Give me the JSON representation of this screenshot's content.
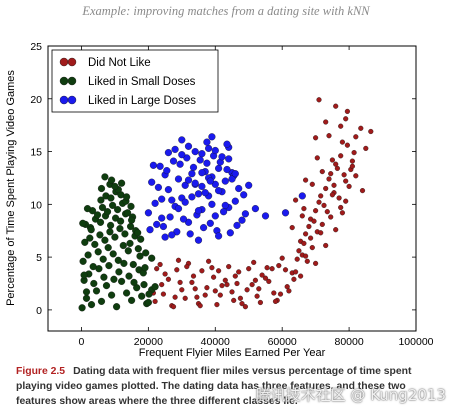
{
  "running_head": "Example: improving matches from a dating site with kNN",
  "caption": {
    "figure_number": "Figure 2.5",
    "text": "Dating data with frequent flier miles versus percentage of time spent playing video games plotted. The dating data has three features, and these two features show areas where the three different classes lie."
  },
  "watermark": "腾讯技术社区 @ Kung2013",
  "colors": {
    "did_not_like": "#a01b1b",
    "small_doses": "#0f3d0f",
    "large_doses": "#1a1aee"
  },
  "chart_data": {
    "type": "scatter",
    "title": "",
    "xlabel": "Frequent Flyier Miles Earned Per Year",
    "ylabel": "Percentage of Time Spent Playing Video Games",
    "xlim": [
      -10000,
      100000
    ],
    "ylim": [
      -2,
      25
    ],
    "xticks": [
      0,
      20000,
      40000,
      60000,
      80000,
      100000
    ],
    "yticks": [
      0,
      5,
      10,
      15,
      20,
      25
    ],
    "grid": false,
    "legend_position": "top-left",
    "series": [
      {
        "name": "Did Not Like",
        "color": "#a01b1b",
        "x": [
          22000,
          24500,
          27000,
          29500,
          31000,
          33500,
          35000,
          37500,
          39000,
          41500,
          43000,
          45500,
          47000,
          49500,
          51000,
          53500,
          55000,
          57500,
          59000,
          61500,
          63000,
          23500,
          26000,
          28500,
          32000,
          34500,
          38000,
          40500,
          44000,
          46500,
          50000,
          52500,
          56000,
          58500,
          62000,
          64500,
          25000,
          30000,
          36000,
          42000,
          48000,
          54000,
          60000,
          66000,
          21500,
          27500,
          33000,
          39500,
          45000,
          51500,
          57000,
          63500,
          24000,
          29000,
          35500,
          41000,
          47500,
          53000,
          59500,
          65500,
          22500,
          28000,
          34000,
          40000,
          46000,
          52000,
          58000,
          64000,
          31500,
          37000,
          43500,
          49000,
          55500,
          61000,
          65000,
          67000,
          68500,
          70000,
          71500,
          73000,
          74500,
          76000,
          77500,
          79000,
          80500,
          66500,
          68000,
          69500,
          71000,
          72500,
          74000,
          75500,
          77000,
          78500,
          80000,
          81500,
          67500,
          69000,
          70500,
          72000,
          73500,
          75000,
          76500,
          78000,
          79500,
          65500,
          67000,
          68500,
          70000,
          71500,
          73000,
          74500,
          76000,
          77500,
          79000,
          82000,
          83500,
          85000,
          86500,
          66000,
          69000,
          72000,
          75000,
          78000,
          81000,
          84000,
          70000,
          73000,
          76000,
          79000,
          82000,
          64000,
          67000,
          70500,
          74000,
          77500,
          81000,
          63000,
          66500,
          71000,
          75500,
          79500
        ],
        "y": [
          0.8,
          1.5,
          0.4,
          2.6,
          1.1,
          3.2,
          0.6,
          2.1,
          4.0,
          1.4,
          2.8,
          0.9,
          3.6,
          1.9,
          2.4,
          0.7,
          3.0,
          1.6,
          4.2,
          2.2,
          3.5,
          4.3,
          2.9,
          3.8,
          4.4,
          1.2,
          4.6,
          0.5,
          4.1,
          2.5,
          3.9,
          1.3,
          2.7,
          0.9,
          1.8,
          4.8,
          3.4,
          1.9,
          3.7,
          2.3,
          0.6,
          3.3,
          4.9,
          5.2,
          1.6,
          0.3,
          2.6,
          3.1,
          1.7,
          4.5,
          3.9,
          2.9,
          2.4,
          4.7,
          0.4,
          3.7,
          1.1,
          2.0,
          1.5,
          6.5,
          3.9,
          1.2,
          2.0,
          1.8,
          3.2,
          2.8,
          0.8,
          3.6,
          4.1,
          1.4,
          2.4,
          0.3,
          4.0,
          3.8,
          5.6,
          7.2,
          8.6,
          9.4,
          10.8,
          11.5,
          12.9,
          13.8,
          14.6,
          12.2,
          13.3,
          6.3,
          7.9,
          8.4,
          10.2,
          9.9,
          12.4,
          11.1,
          10.6,
          12.8,
          11.7,
          14.9,
          4.6,
          5.9,
          7.4,
          8.1,
          9.3,
          10.9,
          13.4,
          9.2,
          15.6,
          3.2,
          5.1,
          6.8,
          4.4,
          7.3,
          6.1,
          8.8,
          7.6,
          9.7,
          10.3,
          16.4,
          17.2,
          15.3,
          16.9,
          8.9,
          11.9,
          13.1,
          14.2,
          15.9,
          13.6,
          11.3,
          16.3,
          17.8,
          19.3,
          18.1,
          12.7,
          10.4,
          12.3,
          14.4,
          16.5,
          17.4,
          14.1,
          7.8,
          9.6,
          19.9,
          11.8,
          18.8
        ]
      },
      {
        "name": "Liked in Small Doses",
        "color": "#0f3d0f",
        "x": [
          200,
          1500,
          3000,
          4500,
          6000,
          7500,
          9000,
          10500,
          12000,
          13500,
          15000,
          16500,
          18000,
          19500,
          21000,
          800,
          2200,
          3700,
          5200,
          6700,
          8200,
          9700,
          11200,
          12700,
          14200,
          15700,
          17200,
          18700,
          20200,
          500,
          2000,
          3500,
          5000,
          6500,
          8000,
          9500,
          11000,
          12500,
          14000,
          15500,
          17000,
          18500,
          1000,
          2500,
          4000,
          5500,
          7000,
          8500,
          10000,
          11500,
          13000,
          14500,
          16000,
          17500,
          19000,
          1200,
          2700,
          4200,
          5700,
          7200,
          8700,
          10200,
          11700,
          13200,
          14700,
          16200,
          17700,
          19200,
          3300,
          4800,
          6300,
          7800,
          9300,
          10800,
          12300,
          13800,
          15300,
          16800,
          5800,
          7300,
          8800,
          10300,
          11800,
          13300,
          14800,
          6000,
          8500,
          11000,
          13500,
          9000,
          12000,
          7000,
          10000,
          15000,
          400,
          1800,
          2900,
          800,
          1500,
          22000,
          21000,
          20000
        ],
        "y": [
          0.2,
          1.1,
          0.5,
          1.8,
          0.8,
          2.3,
          1.4,
          0.3,
          2.7,
          1.6,
          0.9,
          2.1,
          1.3,
          0.6,
          1.9,
          2.8,
          3.4,
          2.5,
          3.9,
          3.1,
          4.2,
          2.9,
          3.6,
          4.4,
          3.2,
          2.6,
          3.8,
          2.4,
          1.5,
          4.6,
          5.2,
          4.1,
          5.5,
          4.8,
          5.9,
          5.3,
          4.7,
          6.1,
          5.6,
          4.3,
          5.8,
          3.5,
          6.4,
          6.8,
          6.2,
          7.1,
          6.6,
          7.4,
          6.9,
          7.7,
          7.2,
          6.3,
          7.0,
          5.1,
          4.0,
          8.1,
          7.8,
          8.6,
          8.3,
          8.9,
          8.0,
          8.7,
          8.4,
          9.1,
          7.9,
          7.5,
          6.7,
          5.4,
          9.4,
          9.0,
          9.7,
          9.3,
          9.9,
          9.5,
          10.1,
          9.2,
          8.8,
          7.3,
          10.4,
          10.8,
          10.6,
          11.2,
          10.9,
          10.3,
          9.8,
          11.5,
          11.9,
          11.4,
          10.7,
          12.3,
          12.0,
          12.6,
          11.7,
          8.5,
          8.2,
          9.6,
          7.6,
          3.3,
          1.7,
          2.2,
          4.9,
          0.7
        ]
      },
      {
        "name": "Liked in Large Doses",
        "color": "#1a1aee",
        "x": [
          20000,
          22000,
          24000,
          26000,
          28000,
          30000,
          32000,
          34000,
          36000,
          38000,
          40000,
          42000,
          44000,
          46000,
          48000,
          21000,
          23000,
          25000,
          27000,
          29000,
          31000,
          33000,
          35000,
          37000,
          39000,
          41000,
          43000,
          45000,
          47000,
          49000,
          20500,
          22500,
          24500,
          26500,
          28500,
          30500,
          32500,
          34500,
          36500,
          38500,
          40500,
          42500,
          44500,
          46500,
          48500,
          23500,
          25500,
          27500,
          29500,
          31500,
          33500,
          35500,
          37500,
          39500,
          41500,
          43500,
          45500,
          26000,
          28000,
          30000,
          32000,
          34000,
          36000,
          38000,
          40000,
          42000,
          44000,
          29000,
          31000,
          33000,
          35000,
          37000,
          39000,
          41000,
          43000,
          32000,
          34000,
          36000,
          38000,
          40000,
          25000,
          27000,
          35000,
          41000,
          21500,
          30000,
          37500,
          43500,
          45000,
          50000,
          52000,
          55000,
          61000,
          66000,
          36000,
          38500,
          24000,
          39000,
          44000,
          46000
        ],
        "y": [
          9.2,
          10.1,
          8.7,
          11.4,
          9.8,
          10.6,
          8.3,
          11.9,
          9.5,
          10.8,
          8.9,
          11.2,
          9.7,
          10.3,
          8.5,
          12.1,
          11.6,
          12.8,
          10.4,
          12.4,
          11.8,
          12.9,
          11.0,
          13.1,
          12.6,
          13.4,
          12.2,
          13.0,
          11.5,
          9.1,
          7.6,
          8.1,
          7.9,
          8.8,
          7.4,
          8.6,
          7.2,
          9.0,
          7.8,
          8.2,
          7.5,
          9.3,
          7.3,
          8.0,
          10.9,
          13.6,
          13.2,
          14.1,
          13.8,
          14.4,
          13.5,
          14.2,
          13.9,
          14.6,
          14.0,
          13.3,
          12.7,
          14.9,
          15.2,
          14.7,
          15.5,
          15.0,
          14.8,
          15.3,
          15.1,
          14.5,
          15.4,
          9.6,
          10.2,
          10.7,
          9.4,
          11.1,
          10.0,
          11.3,
          9.9,
          12.3,
          12.0,
          11.7,
          12.5,
          11.9,
          6.9,
          7.1,
          6.6,
          7.0,
          13.7,
          16.1,
          15.9,
          15.7,
          12.4,
          11.8,
          9.6,
          8.9,
          9.2,
          10.8,
          13.0,
          12.2,
          10.5,
          16.4,
          14.3,
          12.9
        ]
      }
    ]
  }
}
